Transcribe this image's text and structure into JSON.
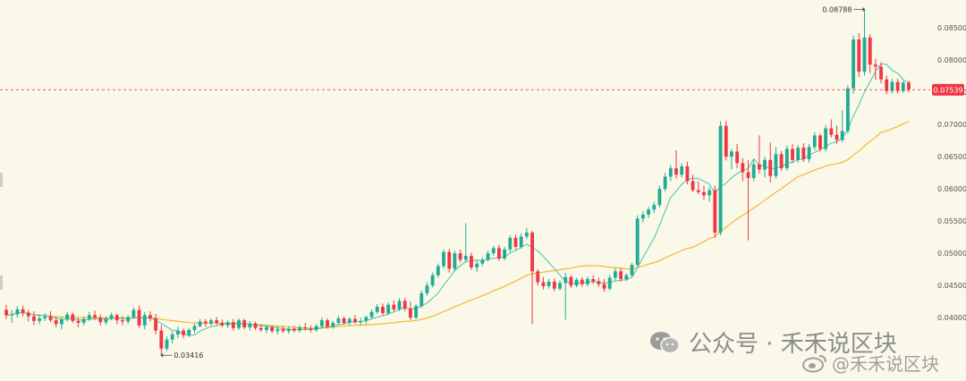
{
  "chart_data": {
    "type": "candlestick",
    "y_ticks": [
      "0.08500",
      "0.08000",
      "0.07500",
      "0.07000",
      "0.06500",
      "0.06000",
      "0.05500",
      "0.05000",
      "0.04500",
      "0.04000"
    ],
    "y_tick_values": [
      0.085,
      0.08,
      0.075,
      0.07,
      0.065,
      0.06,
      0.055,
      0.05,
      0.045,
      0.04
    ],
    "ylim": [
      0.0335,
      0.0885
    ],
    "last_price": "0.07539",
    "last_price_value": 0.07539,
    "high_label": "0.08788",
    "high_value": 0.08788,
    "low_label": "0.03416",
    "low_value": 0.03416,
    "grid": false,
    "colors": {
      "up": "#22ab94",
      "down": "#f23645",
      "ma_fast": "#4cc2a4",
      "ma_slow": "#f7b731",
      "background": "#f9f8e9"
    },
    "candles": [
      [
        0.0412,
        0.042,
        0.0398,
        0.0404
      ],
      [
        0.0404,
        0.0412,
        0.0392,
        0.0405
      ],
      [
        0.0405,
        0.0418,
        0.04,
        0.0413
      ],
      [
        0.0413,
        0.0419,
        0.0402,
        0.0408
      ],
      [
        0.0408,
        0.0412,
        0.0394,
        0.0402
      ],
      [
        0.0402,
        0.041,
        0.0388,
        0.0395
      ],
      [
        0.0395,
        0.0405,
        0.039,
        0.0399
      ],
      [
        0.0399,
        0.0407,
        0.0395,
        0.0402
      ],
      [
        0.0402,
        0.041,
        0.0393,
        0.0396
      ],
      [
        0.0396,
        0.0402,
        0.0385,
        0.039
      ],
      [
        0.039,
        0.0401,
        0.0382,
        0.0397
      ],
      [
        0.0397,
        0.0409,
        0.0394,
        0.0405
      ],
      [
        0.0405,
        0.0408,
        0.0392,
        0.0395
      ],
      [
        0.0395,
        0.04,
        0.0385,
        0.0392
      ],
      [
        0.0392,
        0.0402,
        0.0388,
        0.0398
      ],
      [
        0.0398,
        0.0409,
        0.0395,
        0.0404
      ],
      [
        0.0404,
        0.0411,
        0.0396,
        0.04
      ],
      [
        0.04,
        0.0405,
        0.0388,
        0.0393
      ],
      [
        0.0393,
        0.0402,
        0.0389,
        0.0399
      ],
      [
        0.0399,
        0.0408,
        0.0396,
        0.0404
      ],
      [
        0.0404,
        0.0406,
        0.039,
        0.0396
      ],
      [
        0.0396,
        0.0403,
        0.0388,
        0.0394
      ],
      [
        0.0394,
        0.0404,
        0.039,
        0.0401
      ],
      [
        0.0401,
        0.0416,
        0.0398,
        0.0412
      ],
      [
        0.0412,
        0.0419,
        0.0384,
        0.0388
      ],
      [
        0.0388,
        0.0409,
        0.0382,
        0.0404
      ],
      [
        0.0404,
        0.041,
        0.0394,
        0.0399
      ],
      [
        0.0399,
        0.0406,
        0.0374,
        0.038
      ],
      [
        0.038,
        0.0388,
        0.0342,
        0.0352
      ],
      [
        0.0352,
        0.0371,
        0.0348,
        0.0366
      ],
      [
        0.0366,
        0.0379,
        0.036,
        0.0374
      ],
      [
        0.0374,
        0.0386,
        0.0368,
        0.038
      ],
      [
        0.038,
        0.0383,
        0.0368,
        0.0373
      ],
      [
        0.0373,
        0.0384,
        0.037,
        0.0381
      ],
      [
        0.0381,
        0.0391,
        0.0376,
        0.0387
      ],
      [
        0.0387,
        0.0398,
        0.0385,
        0.0394
      ],
      [
        0.0394,
        0.0398,
        0.0386,
        0.0391
      ],
      [
        0.0391,
        0.0399,
        0.0387,
        0.0396
      ],
      [
        0.0396,
        0.0401,
        0.0389,
        0.0392
      ],
      [
        0.0392,
        0.0397,
        0.0385,
        0.0388
      ],
      [
        0.0388,
        0.0396,
        0.0384,
        0.0393
      ],
      [
        0.0393,
        0.0398,
        0.038,
        0.0384
      ],
      [
        0.0384,
        0.0399,
        0.0381,
        0.0396
      ],
      [
        0.0396,
        0.0398,
        0.0382,
        0.0385
      ],
      [
        0.0385,
        0.0395,
        0.038,
        0.0391
      ],
      [
        0.0391,
        0.0394,
        0.0381,
        0.0384
      ],
      [
        0.0384,
        0.039,
        0.0378,
        0.0381
      ],
      [
        0.0381,
        0.0389,
        0.0376,
        0.0385
      ],
      [
        0.0385,
        0.0388,
        0.0376,
        0.0379
      ],
      [
        0.0379,
        0.0386,
        0.0374,
        0.0382
      ],
      [
        0.0382,
        0.0387,
        0.0376,
        0.0379
      ],
      [
        0.0379,
        0.0386,
        0.0375,
        0.0383
      ],
      [
        0.0383,
        0.0387,
        0.0377,
        0.038
      ],
      [
        0.038,
        0.0388,
        0.0377,
        0.0385
      ],
      [
        0.0385,
        0.0392,
        0.038,
        0.0383
      ],
      [
        0.0383,
        0.0388,
        0.0377,
        0.0381
      ],
      [
        0.0381,
        0.039,
        0.0378,
        0.0387
      ],
      [
        0.0387,
        0.04,
        0.0384,
        0.0396
      ],
      [
        0.0396,
        0.0399,
        0.0383,
        0.0386
      ],
      [
        0.0386,
        0.0395,
        0.0383,
        0.0392
      ],
      [
        0.0392,
        0.0403,
        0.0389,
        0.0399
      ],
      [
        0.0399,
        0.0402,
        0.0389,
        0.0392
      ],
      [
        0.0392,
        0.0401,
        0.0388,
        0.0398
      ],
      [
        0.0398,
        0.0404,
        0.039,
        0.0393
      ],
      [
        0.0393,
        0.04,
        0.0388,
        0.0395
      ],
      [
        0.0395,
        0.0403,
        0.039,
        0.0401
      ],
      [
        0.0401,
        0.0413,
        0.0398,
        0.0409
      ],
      [
        0.0409,
        0.0421,
        0.0406,
        0.0417
      ],
      [
        0.0417,
        0.0422,
        0.0404,
        0.0407
      ],
      [
        0.0407,
        0.0424,
        0.0404,
        0.042
      ],
      [
        0.042,
        0.0427,
        0.041,
        0.0413
      ],
      [
        0.0413,
        0.043,
        0.041,
        0.0426
      ],
      [
        0.0426,
        0.0431,
        0.041,
        0.0414
      ],
      [
        0.0414,
        0.0425,
        0.0396,
        0.04
      ],
      [
        0.04,
        0.0421,
        0.0398,
        0.0418
      ],
      [
        0.0418,
        0.0442,
        0.0415,
        0.0438
      ],
      [
        0.0438,
        0.0455,
        0.0434,
        0.045
      ],
      [
        0.045,
        0.047,
        0.0447,
        0.0466
      ],
      [
        0.0466,
        0.0484,
        0.0462,
        0.048
      ],
      [
        0.048,
        0.0506,
        0.0476,
        0.0502
      ],
      [
        0.0502,
        0.0507,
        0.047,
        0.0476
      ],
      [
        0.0476,
        0.0504,
        0.0472,
        0.05
      ],
      [
        0.05,
        0.0506,
        0.0486,
        0.049
      ],
      [
        0.049,
        0.0547,
        0.0486,
        0.0496
      ],
      [
        0.0496,
        0.0501,
        0.0474,
        0.0478
      ],
      [
        0.0478,
        0.0489,
        0.0471,
        0.0484
      ],
      [
        0.0484,
        0.0494,
        0.048,
        0.049
      ],
      [
        0.049,
        0.0504,
        0.0487,
        0.05
      ],
      [
        0.05,
        0.0511,
        0.0496,
        0.0508
      ],
      [
        0.0508,
        0.0513,
        0.0488,
        0.0492
      ],
      [
        0.0492,
        0.051,
        0.0489,
        0.0506
      ],
      [
        0.0506,
        0.0528,
        0.0502,
        0.0524
      ],
      [
        0.0524,
        0.0529,
        0.0506,
        0.051
      ],
      [
        0.051,
        0.0531,
        0.0507,
        0.0526
      ],
      [
        0.0526,
        0.0539,
        0.0522,
        0.0532
      ],
      [
        0.0532,
        0.0535,
        0.039,
        0.0472
      ],
      [
        0.0472,
        0.0476,
        0.045,
        0.0455
      ],
      [
        0.0455,
        0.0463,
        0.0444,
        0.0449
      ],
      [
        0.0449,
        0.046,
        0.0445,
        0.0456
      ],
      [
        0.0456,
        0.0461,
        0.0441,
        0.0445
      ],
      [
        0.0445,
        0.0458,
        0.0442,
        0.0454
      ],
      [
        0.0454,
        0.047,
        0.0397,
        0.0463
      ],
      [
        0.0463,
        0.0466,
        0.0446,
        0.045
      ],
      [
        0.045,
        0.0462,
        0.0447,
        0.0459
      ],
      [
        0.0459,
        0.0463,
        0.0448,
        0.0452
      ],
      [
        0.0452,
        0.0464,
        0.0449,
        0.046
      ],
      [
        0.046,
        0.0466,
        0.0452,
        0.0456
      ],
      [
        0.0456,
        0.0462,
        0.0448,
        0.0452
      ],
      [
        0.0452,
        0.046,
        0.044,
        0.0445
      ],
      [
        0.0445,
        0.0466,
        0.0442,
        0.0462
      ],
      [
        0.0462,
        0.0477,
        0.0458,
        0.0472
      ],
      [
        0.0472,
        0.0478,
        0.0456,
        0.046
      ],
      [
        0.046,
        0.0469,
        0.0457,
        0.0466
      ],
      [
        0.0466,
        0.0485,
        0.0463,
        0.0482
      ],
      [
        0.0482,
        0.0559,
        0.0479,
        0.0554
      ],
      [
        0.0554,
        0.0565,
        0.0548,
        0.056
      ],
      [
        0.056,
        0.0572,
        0.0555,
        0.0568
      ],
      [
        0.0568,
        0.058,
        0.0562,
        0.0575
      ],
      [
        0.0575,
        0.0605,
        0.0571,
        0.06
      ],
      [
        0.06,
        0.0625,
        0.0596,
        0.0619
      ],
      [
        0.0619,
        0.0637,
        0.0612,
        0.0632
      ],
      [
        0.0632,
        0.066,
        0.0616,
        0.0622
      ],
      [
        0.0622,
        0.064,
        0.0618,
        0.0635
      ],
      [
        0.0635,
        0.0642,
        0.0607,
        0.0612
      ],
      [
        0.0612,
        0.0622,
        0.0595,
        0.0598
      ],
      [
        0.0598,
        0.0612,
        0.0592,
        0.0595
      ],
      [
        0.0595,
        0.0605,
        0.0583,
        0.059
      ],
      [
        0.059,
        0.0603,
        0.058,
        0.0598
      ],
      [
        0.0598,
        0.0605,
        0.0524,
        0.0532
      ],
      [
        0.0532,
        0.0705,
        0.0528,
        0.0698
      ],
      [
        0.0698,
        0.0706,
        0.0644,
        0.065
      ],
      [
        0.065,
        0.0662,
        0.063,
        0.0658
      ],
      [
        0.0658,
        0.067,
        0.0632,
        0.064
      ],
      [
        0.064,
        0.0648,
        0.0612,
        0.0626
      ],
      [
        0.0626,
        0.0645,
        0.052,
        0.0617
      ],
      [
        0.0617,
        0.0646,
        0.0612,
        0.0638
      ],
      [
        0.0638,
        0.0683,
        0.0624,
        0.063
      ],
      [
        0.063,
        0.065,
        0.0618,
        0.0645
      ],
      [
        0.0645,
        0.0672,
        0.061,
        0.062
      ],
      [
        0.062,
        0.0665,
        0.0616,
        0.0654
      ],
      [
        0.0654,
        0.0659,
        0.0628,
        0.0632
      ],
      [
        0.0632,
        0.0667,
        0.0628,
        0.0662
      ],
      [
        0.0662,
        0.067,
        0.064,
        0.0645
      ],
      [
        0.0645,
        0.0668,
        0.0641,
        0.0664
      ],
      [
        0.0664,
        0.0671,
        0.0642,
        0.0646
      ],
      [
        0.0646,
        0.067,
        0.0641,
        0.0665
      ],
      [
        0.0665,
        0.0688,
        0.066,
        0.0683
      ],
      [
        0.0683,
        0.0686,
        0.0658,
        0.0662
      ],
      [
        0.0662,
        0.0699,
        0.0658,
        0.0694
      ],
      [
        0.0694,
        0.0708,
        0.068,
        0.0684
      ],
      [
        0.0684,
        0.0698,
        0.067,
        0.0676
      ],
      [
        0.0676,
        0.0722,
        0.0672,
        0.069
      ],
      [
        0.069,
        0.0761,
        0.0686,
        0.0756
      ],
      [
        0.0756,
        0.0838,
        0.0748,
        0.0832
      ],
      [
        0.0832,
        0.0842,
        0.0774,
        0.0782
      ],
      [
        0.0782,
        0.0879,
        0.0776,
        0.0835
      ],
      [
        0.0835,
        0.084,
        0.078,
        0.0793
      ],
      [
        0.0793,
        0.0802,
        0.0769,
        0.079
      ],
      [
        0.079,
        0.0797,
        0.0764,
        0.077
      ],
      [
        0.077,
        0.0776,
        0.0747,
        0.0752
      ],
      [
        0.0752,
        0.0771,
        0.0748,
        0.0766
      ],
      [
        0.0766,
        0.0771,
        0.0748,
        0.0752
      ],
      [
        0.0752,
        0.0768,
        0.0749,
        0.0765
      ],
      [
        0.0765,
        0.0768,
        0.075,
        0.0754
      ]
    ]
  },
  "watermark": {
    "line1": "公众号 · 禾禾说区块",
    "line2": "@禾禾说区块"
  },
  "icons": {
    "wechat": "wechat-logo-icon",
    "weibo": "weibo-logo-icon"
  }
}
